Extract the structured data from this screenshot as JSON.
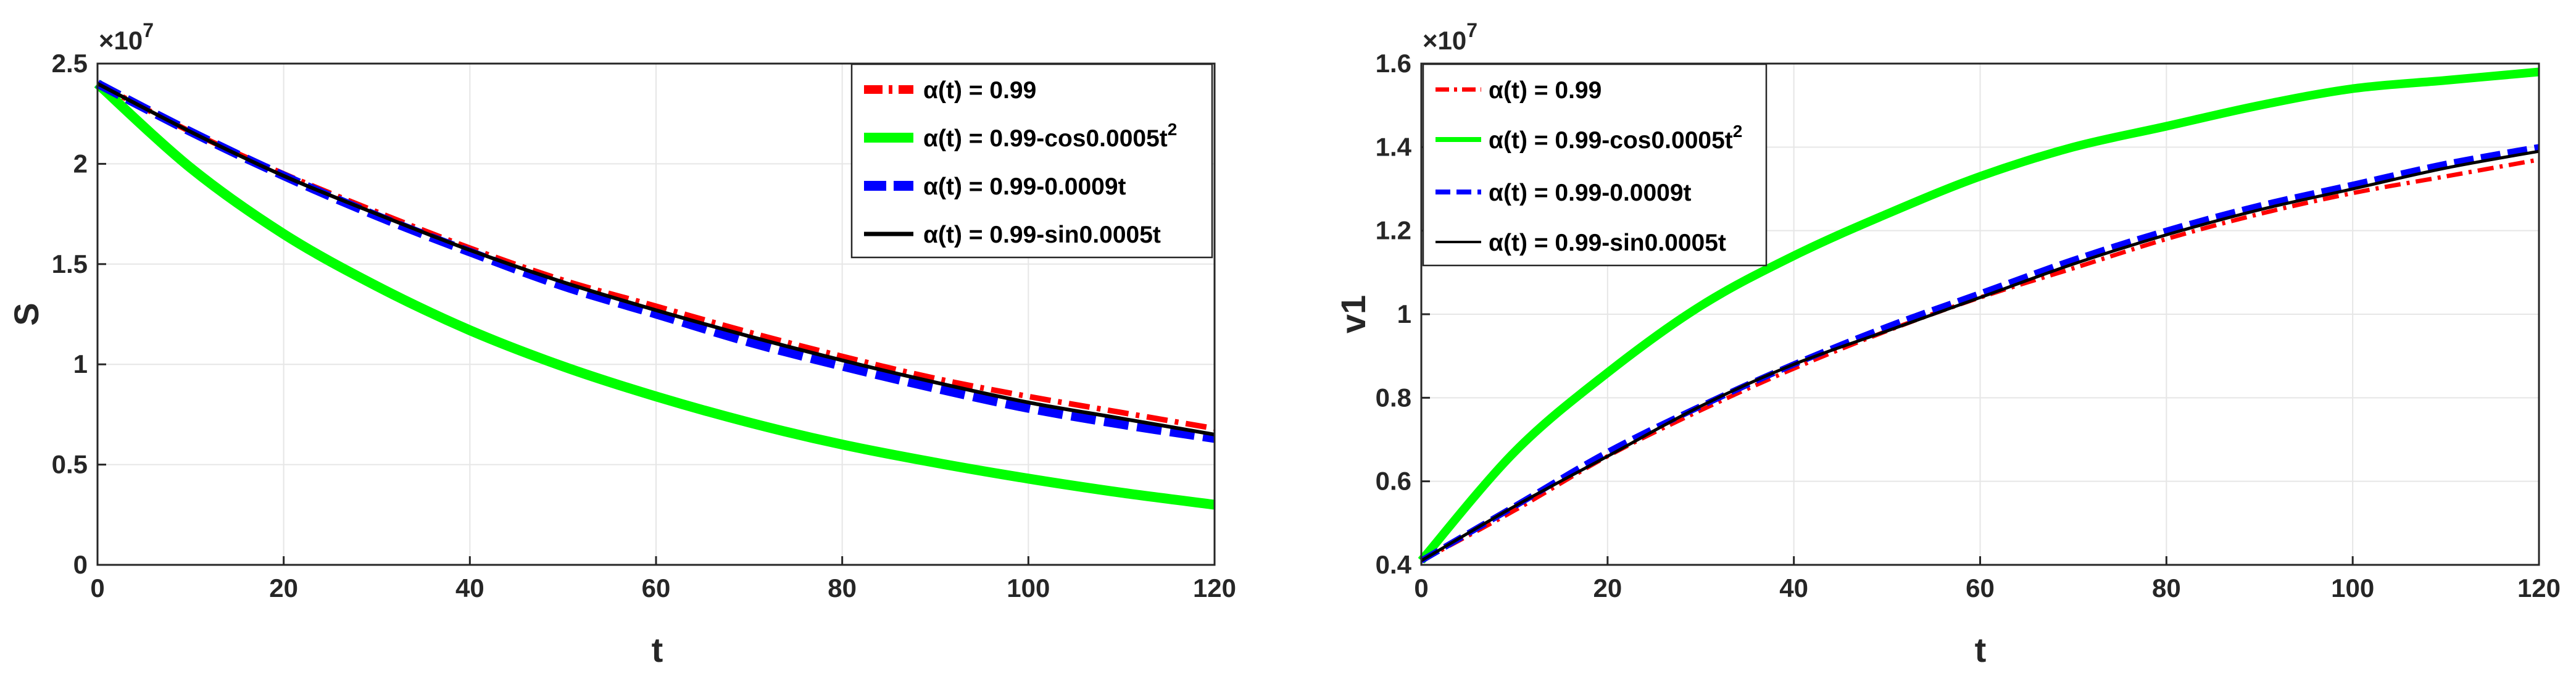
{
  "chart_data": [
    {
      "type": "line",
      "title": "",
      "xlabel": "t",
      "ylabel": "S",
      "xlim": [
        0,
        120
      ],
      "ylim": [
        0,
        2.5
      ],
      "y_multiplier": "×10",
      "y_exponent": "7",
      "xticks": [
        "0",
        "20",
        "40",
        "60",
        "80",
        "100",
        "120"
      ],
      "yticks": [
        "0",
        "0.5",
        "1",
        "1.5",
        "2",
        "2.5"
      ],
      "grid": true,
      "legend_position": "top-right",
      "x": [
        0,
        10,
        20,
        30,
        40,
        50,
        60,
        70,
        80,
        90,
        100,
        110,
        120
      ],
      "series": [
        {
          "name": "α(t) = 0.99",
          "sup": "",
          "color": "#ff0000",
          "style": "dashdot",
          "values": [
            2.4,
            2.16,
            1.95,
            1.76,
            1.58,
            1.42,
            1.29,
            1.16,
            1.04,
            0.93,
            0.84,
            0.76,
            0.68
          ]
        },
        {
          "name": "α(t) = 0.99-cos0.0005t",
          "sup": "2",
          "color": "#00ff00",
          "style": "solid-thick",
          "values": [
            2.4,
            1.98,
            1.65,
            1.39,
            1.17,
            0.99,
            0.84,
            0.71,
            0.6,
            0.51,
            0.43,
            0.36,
            0.3
          ]
        },
        {
          "name": "α(t) = 0.99-0.0009t",
          "sup": "",
          "color": "#0000ff",
          "style": "dashed",
          "values": [
            2.4,
            2.16,
            1.94,
            1.74,
            1.56,
            1.39,
            1.25,
            1.11,
            0.99,
            0.88,
            0.78,
            0.7,
            0.63
          ]
        },
        {
          "name": "α(t) = 0.99-sin0.0005t",
          "sup": "",
          "color": "#000000",
          "style": "solid",
          "values": [
            2.4,
            2.16,
            1.94,
            1.75,
            1.57,
            1.41,
            1.27,
            1.14,
            1.02,
            0.91,
            0.81,
            0.73,
            0.65
          ]
        }
      ]
    },
    {
      "type": "line",
      "title": "",
      "xlabel": "t",
      "ylabel": "v1",
      "xlim": [
        0,
        120
      ],
      "ylim": [
        0.4,
        1.6
      ],
      "y_multiplier": "×10",
      "y_exponent": "7",
      "xticks": [
        "0",
        "20",
        "40",
        "60",
        "80",
        "100",
        "120"
      ],
      "yticks": [
        "0.4",
        "0.6",
        "0.8",
        "1",
        "1.2",
        "1.4",
        "1.6"
      ],
      "grid": true,
      "legend_position": "top-left",
      "x": [
        0,
        10,
        20,
        30,
        40,
        50,
        60,
        70,
        80,
        90,
        100,
        110,
        120
      ],
      "series": [
        {
          "name": "α(t) = 0.99",
          "sup": "",
          "color": "#ff0000",
          "style": "dashdot",
          "values": [
            0.41,
            0.53,
            0.66,
            0.77,
            0.87,
            0.96,
            1.04,
            1.11,
            1.18,
            1.24,
            1.29,
            1.33,
            1.37
          ]
        },
        {
          "name": "α(t) = 0.99-cos0.0005t",
          "sup": "2",
          "color": "#00ff00",
          "style": "solid-thick",
          "values": [
            0.41,
            0.67,
            0.86,
            1.02,
            1.14,
            1.24,
            1.33,
            1.4,
            1.45,
            1.5,
            1.54,
            1.56,
            1.58
          ]
        },
        {
          "name": "α(t) = 0.99-0.0009t",
          "sup": "",
          "color": "#0000ff",
          "style": "dashed",
          "values": [
            0.41,
            0.54,
            0.67,
            0.78,
            0.88,
            0.97,
            1.05,
            1.13,
            1.2,
            1.26,
            1.31,
            1.36,
            1.4
          ]
        },
        {
          "name": "α(t) = 0.99-sin0.0005t",
          "sup": "",
          "color": "#000000",
          "style": "solid",
          "values": [
            0.41,
            0.54,
            0.66,
            0.78,
            0.88,
            0.96,
            1.04,
            1.12,
            1.19,
            1.25,
            1.3,
            1.35,
            1.39
          ]
        }
      ]
    }
  ]
}
